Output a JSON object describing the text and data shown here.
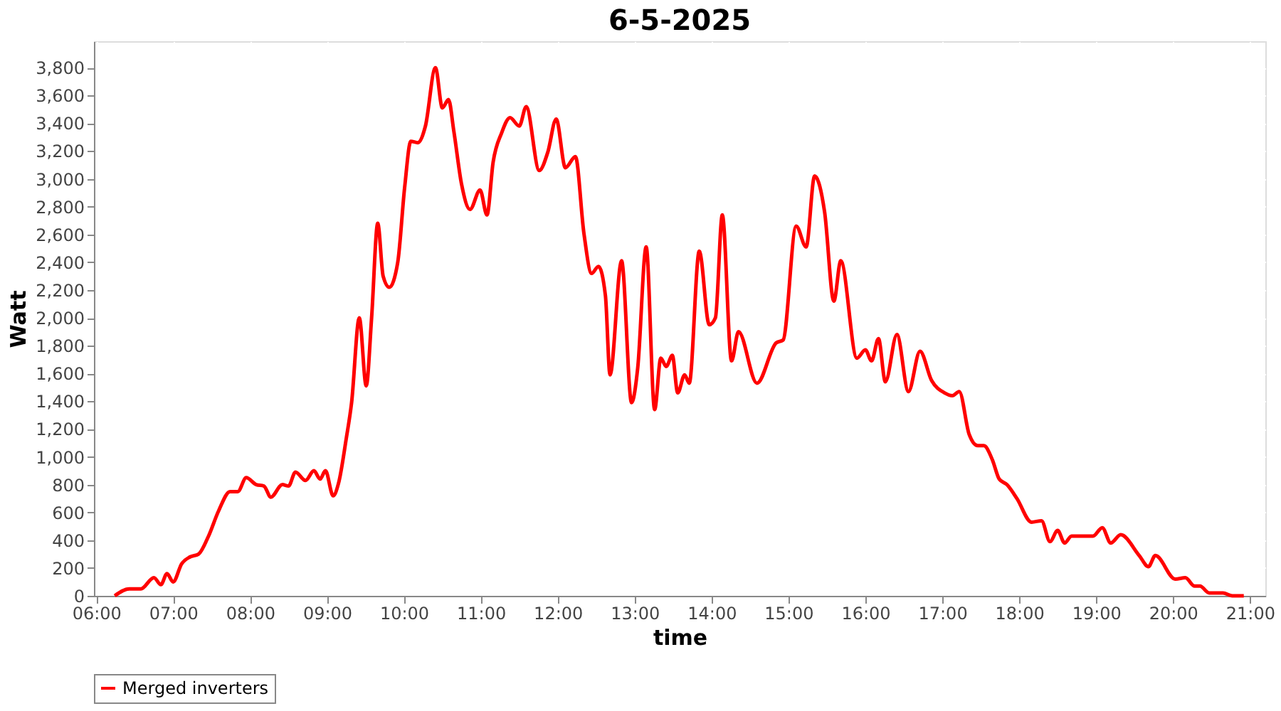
{
  "chart_data": {
    "type": "line",
    "title": "6-5-2025",
    "xlabel": "time",
    "ylabel": "Watt",
    "xlim": [
      5.97,
      21.2
    ],
    "xticks": [
      {
        "value": 6,
        "label": "06:00"
      },
      {
        "value": 7,
        "label": "07:00"
      },
      {
        "value": 8,
        "label": "08:00"
      },
      {
        "value": 9,
        "label": "09:00"
      },
      {
        "value": 10,
        "label": "10:00"
      },
      {
        "value": 11,
        "label": "11:00"
      },
      {
        "value": 12,
        "label": "12:00"
      },
      {
        "value": 13,
        "label": "13:00"
      },
      {
        "value": 14,
        "label": "14:00"
      },
      {
        "value": 15,
        "label": "15:00"
      },
      {
        "value": 16,
        "label": "16:00"
      },
      {
        "value": 17,
        "label": "17:00"
      },
      {
        "value": 18,
        "label": "18:00"
      },
      {
        "value": 19,
        "label": "19:00"
      },
      {
        "value": 20,
        "label": "20:00"
      },
      {
        "value": 21,
        "label": "21:00"
      }
    ],
    "ylim": [
      0,
      3990
    ],
    "yticks": [
      0,
      200,
      400,
      600,
      800,
      {
        "value": 1000,
        "label": "1,000"
      },
      {
        "value": 1200,
        "label": "1,200"
      },
      {
        "value": 1400,
        "label": "1,400"
      },
      {
        "value": 1600,
        "label": "1,600"
      },
      {
        "value": 1800,
        "label": "1,800"
      },
      {
        "value": 2000,
        "label": "2,000"
      },
      {
        "value": 2200,
        "label": "2,200"
      },
      {
        "value": 2400,
        "label": "2,400"
      },
      {
        "value": 2600,
        "label": "2,600"
      },
      {
        "value": 2800,
        "label": "2,800"
      },
      {
        "value": 3000,
        "label": "3,000"
      },
      {
        "value": 3200,
        "label": "3,200"
      },
      {
        "value": 3400,
        "label": "3,400"
      },
      {
        "value": 3600,
        "label": "3,600"
      },
      {
        "value": 3800,
        "label": "3,800"
      }
    ],
    "grid": true,
    "legend": "bottom",
    "marker": "none",
    "line_style": "solid",
    "series": [
      {
        "name": "Merged inverters",
        "color": "#ff0000",
        "x": [
          6.24,
          6.43,
          6.58,
          6.75,
          6.84,
          6.92,
          7.0,
          7.11,
          7.22,
          7.33,
          7.46,
          7.59,
          7.74,
          7.84,
          7.95,
          8.08,
          8.18,
          8.27,
          8.42,
          8.5,
          8.59,
          8.72,
          8.83,
          8.91,
          8.98,
          9.08,
          9.15,
          9.25,
          9.32,
          9.42,
          9.51,
          9.58,
          9.66,
          9.73,
          9.81,
          9.92,
          10.01,
          10.09,
          10.18,
          10.28,
          10.41,
          10.5,
          10.58,
          10.65,
          10.75,
          10.86,
          10.99,
          11.08,
          11.16,
          11.27,
          11.38,
          11.5,
          11.59,
          11.76,
          11.87,
          11.98,
          12.1,
          12.23,
          12.34,
          12.44,
          12.53,
          12.62,
          12.68,
          12.83,
          12.96,
          13.04,
          13.15,
          13.26,
          13.34,
          13.41,
          13.49,
          13.56,
          13.65,
          13.71,
          13.84,
          13.97,
          14.05,
          14.14,
          14.26,
          14.35,
          14.59,
          14.84,
          14.93,
          15.1,
          15.23,
          15.34,
          15.47,
          15.59,
          15.68,
          15.89,
          16.0,
          16.08,
          16.17,
          16.26,
          16.41,
          16.56,
          16.71,
          16.86,
          17.03,
          17.13,
          17.22,
          17.35,
          17.46,
          17.54,
          17.65,
          17.74,
          17.84,
          17.97,
          18.16,
          18.29,
          18.4,
          18.5,
          18.59,
          18.68,
          18.96,
          19.08,
          19.19,
          19.32,
          19.56,
          19.68,
          19.77,
          20.03,
          20.16,
          20.28,
          20.35,
          20.47,
          20.65,
          20.77,
          20.92
        ],
        "values": [
          0,
          50,
          50,
          130,
          80,
          160,
          100,
          230,
          280,
          300,
          430,
          610,
          750,
          750,
          850,
          800,
          790,
          710,
          800,
          790,
          890,
          830,
          900,
          840,
          900,
          720,
          810,
          1130,
          1390,
          2000,
          1510,
          2000,
          2680,
          2300,
          2220,
          2400,
          2940,
          3270,
          3260,
          3380,
          3800,
          3510,
          3570,
          3340,
          2960,
          2780,
          2920,
          2740,
          3120,
          3330,
          3440,
          3380,
          3520,
          3060,
          3190,
          3430,
          3080,
          3160,
          2610,
          2320,
          2370,
          2160,
          1590,
          2410,
          1390,
          1640,
          2510,
          1340,
          1710,
          1650,
          1730,
          1460,
          1590,
          1530,
          2480,
          1950,
          2000,
          2740,
          1690,
          1900,
          1530,
          1820,
          1840,
          2660,
          2510,
          3020,
          2760,
          2120,
          2410,
          1710,
          1770,
          1690,
          1850,
          1540,
          1880,
          1470,
          1760,
          1550,
          1460,
          1440,
          1470,
          1160,
          1080,
          1080,
          980,
          840,
          800,
          700,
          530,
          540,
          390,
          470,
          380,
          430,
          430,
          490,
          380,
          440,
          290,
          210,
          290,
          120,
          130,
          70,
          70,
          20,
          20,
          0,
          0
        ]
      }
    ]
  }
}
